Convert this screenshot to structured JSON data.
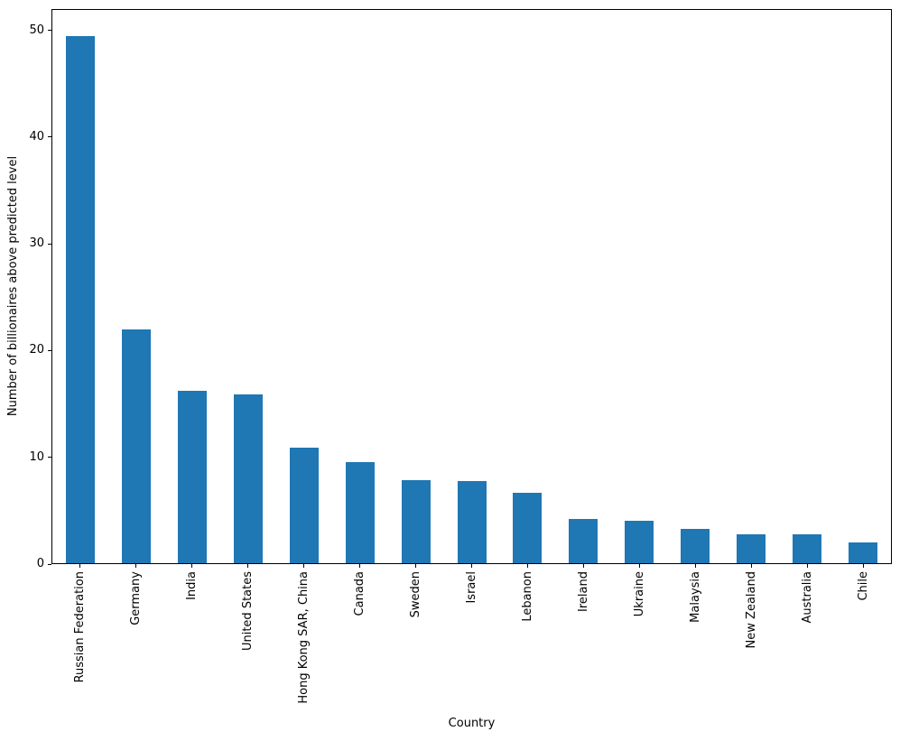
{
  "chart_data": {
    "type": "bar",
    "title": "",
    "xlabel": "Country",
    "ylabel": "Number of billionaires above predicted level",
    "categories": [
      "Russian Federation",
      "Germany",
      "India",
      "United States",
      "Hong Kong SAR, China",
      "Canada",
      "Sweden",
      "Israel",
      "Lebanon",
      "Ireland",
      "Ukraine",
      "Malaysia",
      "New Zealand",
      "Australia",
      "Chile"
    ],
    "values": [
      49.5,
      22.0,
      16.2,
      15.9,
      10.9,
      9.5,
      7.8,
      7.7,
      6.6,
      4.2,
      4.0,
      3.2,
      2.75,
      2.73,
      1.97
    ],
    "yticks": [
      0,
      10,
      20,
      30,
      40,
      50
    ],
    "ylim": [
      0,
      52
    ],
    "grid": false,
    "legend": null,
    "bar_color": "#1f77b4",
    "axis_color": "#000000",
    "background_color": "#ffffff"
  }
}
